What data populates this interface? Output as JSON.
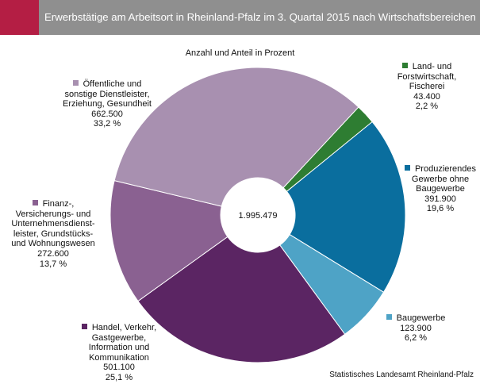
{
  "header": {
    "title": "Erwerbstätige am Arbeitsort in Rheinland-Pfalz im 3. Quartal 2015 nach Wirtschaftsbereichen",
    "accent_color": "#b41e44",
    "bar_color": "#8f8f8f"
  },
  "chart_data": {
    "type": "pie",
    "variant": "donut",
    "subtitle": "Anzahl und Anteil in Prozent",
    "center_label": "1.995.479",
    "total": 1995479,
    "slices": [
      {
        "name_lines": [
          "Land- und",
          "Forstwirtschaft,",
          "Fischerei"
        ],
        "value_text": "43.400",
        "value": 43400,
        "percent_text": "2,2 %",
        "percent": 2.2,
        "color": "#2e7d32"
      },
      {
        "name_lines": [
          "Produzierendes",
          "Gewerbe ohne",
          "Baugewerbe"
        ],
        "value_text": "391.900",
        "value": 391900,
        "percent_text": "19,6 %",
        "percent": 19.6,
        "color": "#0a6e9e"
      },
      {
        "name_lines": [
          "Baugewerbe"
        ],
        "value_text": "123.900",
        "value": 123900,
        "percent_text": "6,2 %",
        "percent": 6.2,
        "color": "#4ea3c6"
      },
      {
        "name_lines": [
          "Handel, Verkehr,",
          "Gastgewerbe,",
          "Information und",
          "Kommunikation"
        ],
        "value_text": "501.100",
        "value": 501100,
        "percent_text": "25,1 %",
        "percent": 25.1,
        "color": "#5b2563"
      },
      {
        "name_lines": [
          "Finanz-,",
          "Versicherungs- und",
          "Unternehmensdienst-",
          "leister, Grundstücks-",
          "und Wohnungswesen"
        ],
        "value_text": "272.600",
        "value": 272600,
        "percent_text": "13,7 %",
        "percent": 13.7,
        "color": "#8a6191"
      },
      {
        "name_lines": [
          "Öffentliche und",
          "sonstige Dienstleister,",
          "Erziehung, Gesundheit"
        ],
        "value_text": "662.500",
        "value": 662500,
        "percent_text": "33,2 %",
        "percent": 33.2,
        "color": "#a890b0"
      }
    ]
  },
  "footer": {
    "source": "Statistisches Landesamt Rheinland-Pfalz"
  }
}
